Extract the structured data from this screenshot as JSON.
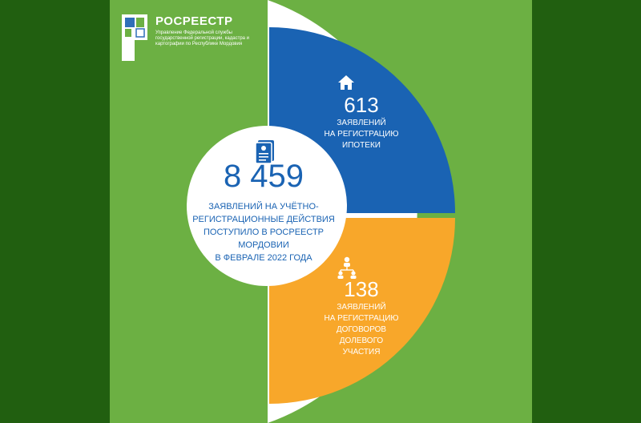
{
  "logo": {
    "name": "РОСРЕЕСТР",
    "subtitle": "Управление Федеральной службы государственной регистрации, кадастра и картографии по Республике Мордовия"
  },
  "icons": {
    "center": "document-icon",
    "top": "house-icon",
    "bottom": "people-network-icon"
  },
  "colors": {
    "background": "#215f10",
    "panel": "#6cb043",
    "blue": "#1a63b3",
    "orange": "#f8a72a",
    "white": "#ffffff"
  },
  "chart_data": {
    "type": "pie",
    "total": {
      "value": "8 459",
      "caption_lines": [
        "ЗАЯВЛЕНИЙ НА УЧЁТНО-",
        "РЕГИСТРАЦИОННЫЕ ДЕЙСТВИЯ",
        "ПОСТУПИЛО В РОСРЕЕСТР МОРДОВИИ",
        "В ФЕВРАЛЕ 2022 ГОДА"
      ]
    },
    "slices": [
      {
        "value": 613,
        "label": "613",
        "caption_lines": [
          "ЗАЯВЛЕНИЙ",
          "НА РЕГИСТРАЦИЮ",
          "ИПОТЕКИ"
        ],
        "color": "#1a63b3"
      },
      {
        "value": 138,
        "label": "138",
        "caption_lines": [
          "ЗАЯВЛЕНИЙ",
          "НА РЕГИСТРАЦИЮ",
          "ДОГОВОРОВ",
          "ДОЛЕВОГО",
          "УЧАСТИЯ"
        ],
        "color": "#f8a72a"
      }
    ]
  }
}
